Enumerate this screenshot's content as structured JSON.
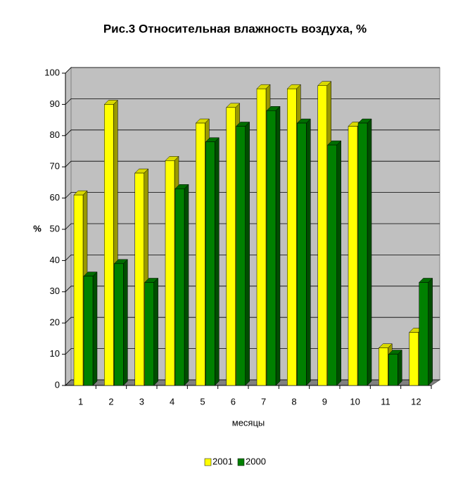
{
  "chart_data": {
    "type": "bar3d",
    "title": "Рис.3 Относительная влажность воздуха, %",
    "x_label": "месяцы",
    "y_label": "%",
    "categories": [
      "1",
      "2",
      "3",
      "4",
      "5",
      "6",
      "7",
      "8",
      "9",
      "10",
      "11",
      "12"
    ],
    "series": [
      {
        "name": "2001",
        "color": "#ffff00",
        "values": [
          61,
          90,
          68,
          72,
          84,
          89,
          95,
          95,
          96,
          83,
          12,
          17
        ]
      },
      {
        "name": "2000",
        "color": "#008000",
        "values": [
          35,
          39,
          33,
          63,
          78,
          83,
          88,
          84,
          77,
          84,
          10,
          33
        ]
      }
    ],
    "ylim": [
      0,
      100
    ],
    "yticks": [
      0,
      10,
      20,
      30,
      40,
      50,
      60,
      70,
      80,
      90,
      100
    ],
    "grid": true,
    "legend": "bottom"
  }
}
